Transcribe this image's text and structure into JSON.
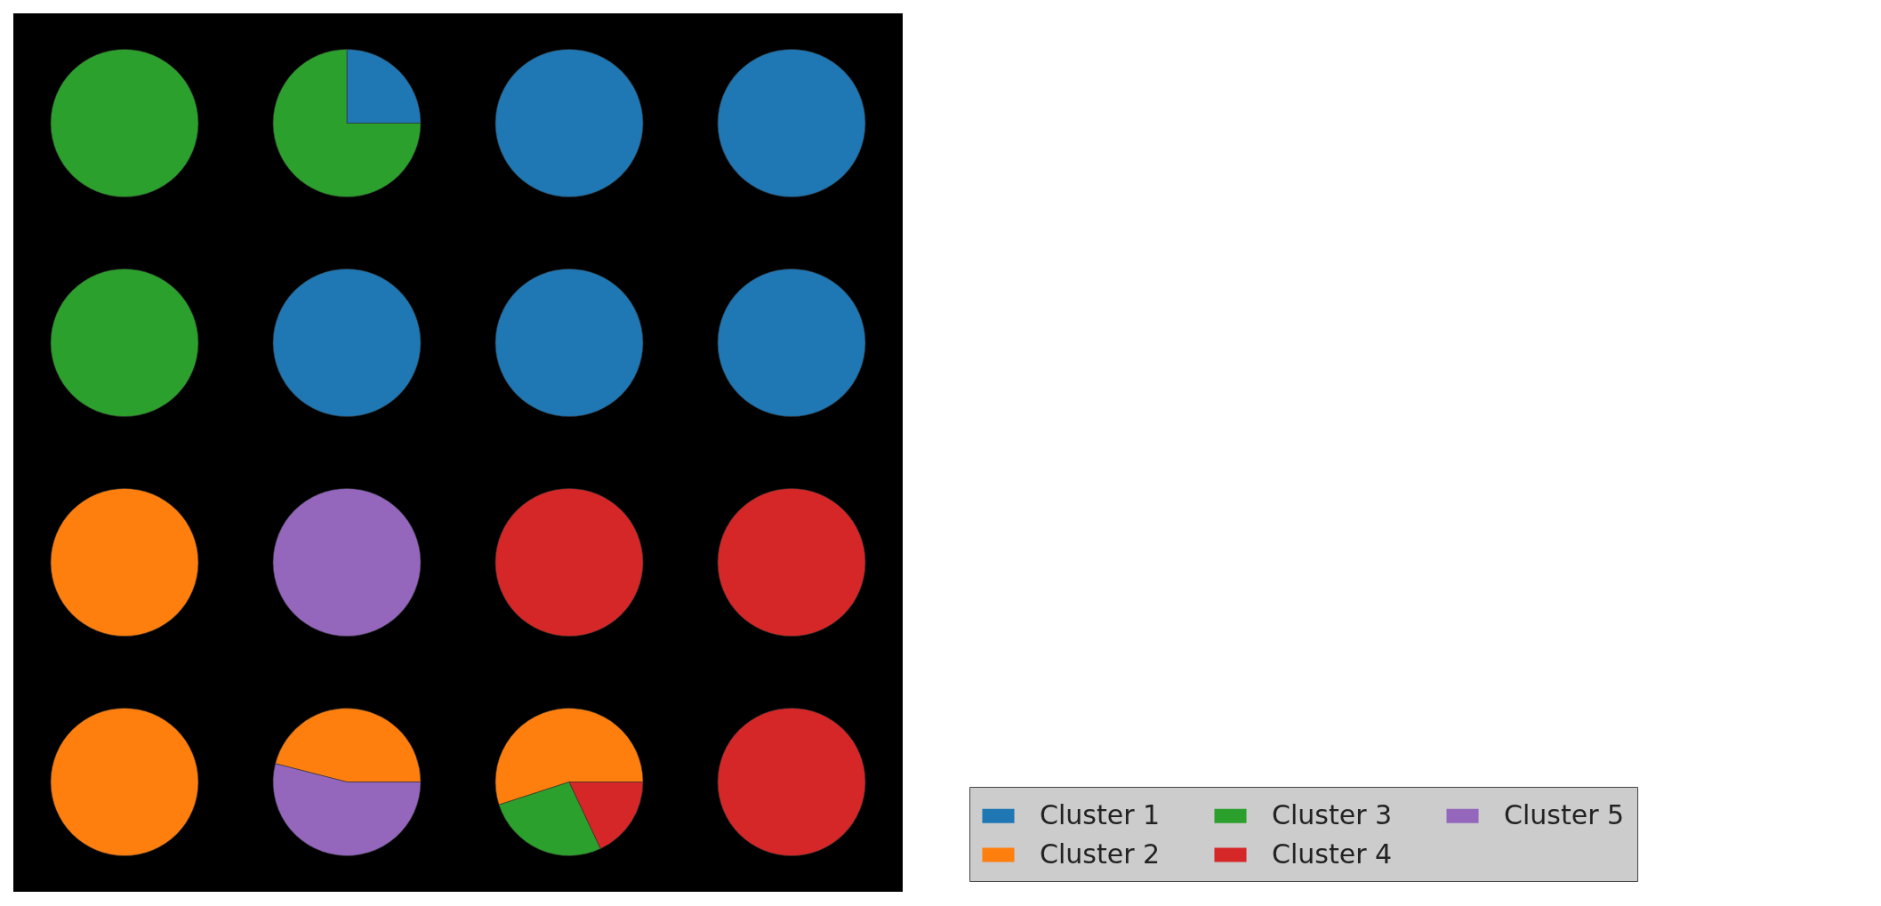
{
  "chart_data": [
    {
      "type": "pie",
      "categories": [
        "Cluster 1",
        "Cluster 2",
        "Cluster 3",
        "Cluster 4",
        "Cluster 5"
      ],
      "colors": [
        "#1f77b4",
        "#ff7f0e",
        "#2ca02c",
        "#d62728",
        "#9467bd"
      ],
      "values": [
        0,
        0,
        100,
        0,
        0
      ],
      "legend": "bottom right"
    },
    {
      "type": "pie",
      "categories": [
        null,
        null,
        null,
        null,
        null
      ],
      "colors": [
        "#1f77b4",
        "#ff7f0e",
        "#2ca02c",
        "#d62728",
        "#9467bd"
      ],
      "values": [
        25,
        0,
        75,
        0,
        0
      ]
    },
    {
      "type": "pie",
      "categories": [
        null,
        null,
        null,
        null,
        null
      ],
      "colors": [
        "#1f77b4",
        "#ff7f0e",
        "#2ca02c",
        "#d62728",
        "#9467bd"
      ],
      "values": [
        100,
        0,
        0,
        0,
        0
      ]
    },
    {
      "type": "pie",
      "categories": [
        null,
        null,
        null,
        null,
        null
      ],
      "colors": [
        "#1f77b4",
        "#ff7f0e",
        "#2ca02c",
        "#d62728",
        "#9467bd"
      ],
      "values": [
        100,
        0,
        0,
        0,
        0
      ]
    },
    {
      "type": "pie",
      "categories": [
        null,
        null,
        null,
        null,
        null
      ],
      "colors": [
        "#1f77b4",
        "#ff7f0e",
        "#2ca02c",
        "#d62728",
        "#9467bd"
      ],
      "values": [
        0,
        0,
        100,
        0,
        0
      ]
    },
    {
      "type": "pie",
      "categories": [
        null,
        null,
        null,
        null,
        null
      ],
      "colors": [
        "#1f77b4",
        "#ff7f0e",
        "#2ca02c",
        "#d62728",
        "#9467bd"
      ],
      "values": [
        100,
        0,
        0,
        0,
        0
      ]
    },
    {
      "type": "pie",
      "categories": [
        null,
        null,
        null,
        null,
        null
      ],
      "colors": [
        "#1f77b4",
        "#ff7f0e",
        "#2ca02c",
        "#d62728",
        "#9467bd"
      ],
      "values": [
        100,
        0,
        0,
        0,
        0
      ]
    },
    {
      "type": "pie",
      "categories": [
        null,
        null,
        null,
        null,
        null
      ],
      "colors": [
        "#1f77b4",
        "#ff7f0e",
        "#2ca02c",
        "#d62728",
        "#9467bd"
      ],
      "values": [
        100,
        0,
        0,
        0,
        0
      ]
    },
    {
      "type": "pie",
      "categories": [
        null,
        null,
        null,
        null,
        null
      ],
      "colors": [
        "#1f77b4",
        "#ff7f0e",
        "#2ca02c",
        "#d62728",
        "#9467bd"
      ],
      "values": [
        0,
        100,
        0,
        0,
        0
      ]
    },
    {
      "type": "pie",
      "categories": [
        null,
        null,
        null,
        null,
        null
      ],
      "colors": [
        "#1f77b4",
        "#ff7f0e",
        "#2ca02c",
        "#d62728",
        "#9467bd"
      ],
      "values": [
        0,
        0,
        0,
        0,
        100
      ]
    },
    {
      "type": "pie",
      "categories": [
        null,
        null,
        null,
        null,
        null
      ],
      "colors": [
        "#1f77b4",
        "#ff7f0e",
        "#2ca02c",
        "#d62728",
        "#9467bd"
      ],
      "values": [
        0,
        0,
        0,
        100,
        0
      ]
    },
    {
      "type": "pie",
      "categories": [
        null,
        null,
        null,
        null,
        null
      ],
      "colors": [
        "#1f77b4",
        "#ff7f0e",
        "#2ca02c",
        "#d62728",
        "#9467bd"
      ],
      "values": [
        0,
        0,
        0,
        100,
        0
      ]
    },
    {
      "type": "pie",
      "categories": [
        null,
        null,
        null,
        null,
        null
      ],
      "colors": [
        "#1f77b4",
        "#ff7f0e",
        "#2ca02c",
        "#d62728",
        "#9467bd"
      ],
      "values": [
        0,
        100,
        0,
        0,
        0
      ]
    },
    {
      "type": "pie",
      "categories": [
        null,
        null,
        null,
        null,
        null
      ],
      "colors": [
        "#1f77b4",
        "#ff7f0e",
        "#2ca02c",
        "#d62728",
        "#9467bd"
      ],
      "values": [
        0,
        46,
        0,
        0,
        54
      ]
    },
    {
      "type": "pie",
      "categories": [
        null,
        null,
        null,
        null,
        null
      ],
      "colors": [
        "#1f77b4",
        "#ff7f0e",
        "#2ca02c",
        "#d62728",
        "#9467bd"
      ],
      "values": [
        0,
        55,
        27,
        18,
        0
      ]
    },
    {
      "type": "pie",
      "categories": [
        null,
        null,
        null,
        null,
        null
      ],
      "colors": [
        "#1f77b4",
        "#ff7f0e",
        "#2ca02c",
        "#d62728",
        "#9467bd"
      ],
      "values": [
        0,
        0,
        0,
        100,
        0
      ]
    }
  ]
}
